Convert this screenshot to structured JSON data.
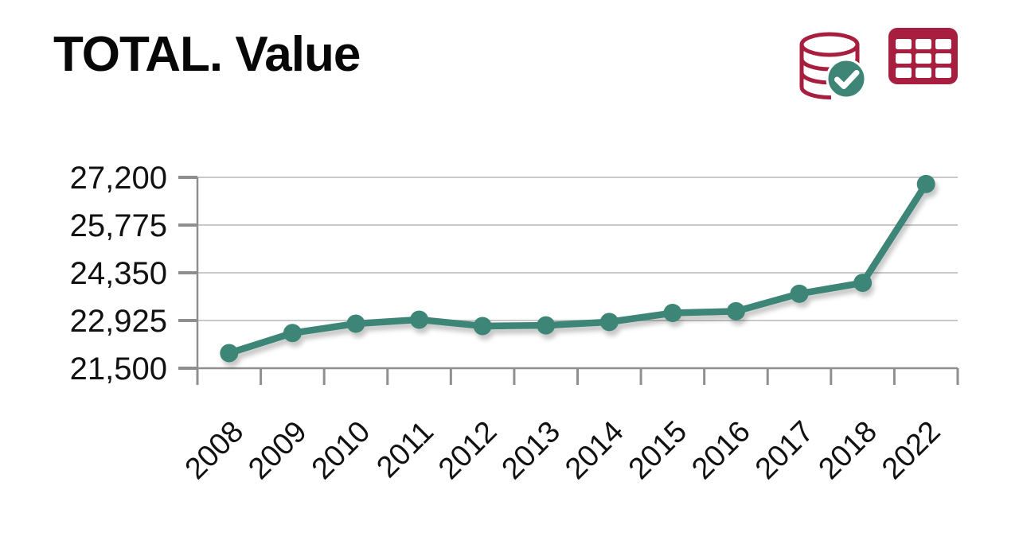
{
  "title": "TOTAL. Value",
  "toolbar": {
    "icons": [
      {
        "name": "database-checked-icon",
        "meaning": "data source loaded"
      },
      {
        "name": "table-view-icon",
        "meaning": "show data as table"
      }
    ]
  },
  "colors": {
    "accent_crimson": "#a81e3f",
    "series_teal": "#3e8576",
    "gridline": "#c9c9c9",
    "axis": "#8f8f8f",
    "text": "#111111",
    "check_white": "#ffffff"
  },
  "chart_data": {
    "type": "line",
    "title": "TOTAL. Value",
    "categories": [
      "2008",
      "2009",
      "2010",
      "2011",
      "2012",
      "2013",
      "2014",
      "2015",
      "2016",
      "2017",
      "2018",
      "2022"
    ],
    "series": [
      {
        "name": "TOTAL",
        "values": [
          21950,
          22550,
          22830,
          22950,
          22760,
          22780,
          22880,
          23150,
          23200,
          23725,
          24050,
          27000
        ]
      }
    ],
    "xlabel": "",
    "ylabel": "",
    "ylim": [
      21500,
      27200
    ],
    "y_ticks": [
      21500,
      22925,
      24350,
      25775,
      27200
    ],
    "y_tick_labels": [
      "21,500",
      "22,925",
      "24,350",
      "25,775",
      "27,200"
    ],
    "grid": "horizontal only",
    "legend_position": "none",
    "marker": "circle",
    "x_label_rotation_deg": -45
  }
}
